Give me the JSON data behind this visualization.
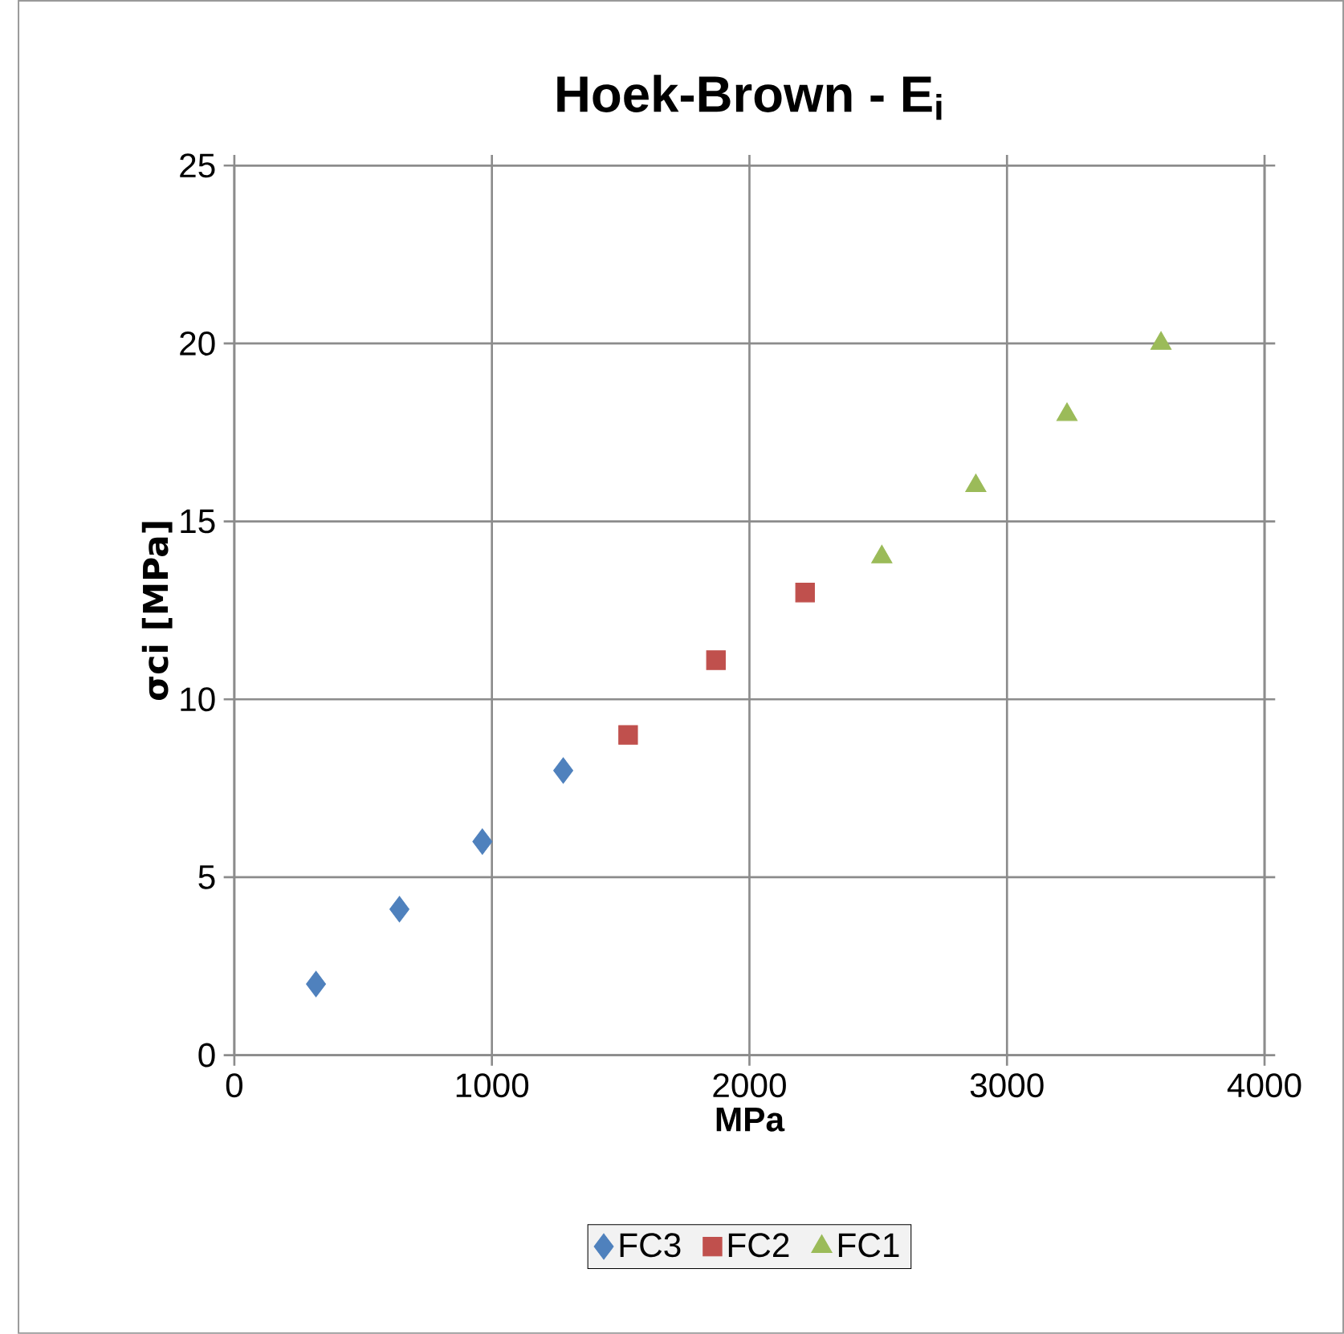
{
  "chart_data": {
    "type": "scatter",
    "title": "Hoek-Brown - E$_{i}$",
    "xlabel": "MPa",
    "ylabel": "σci [MPa]",
    "xlim": [
      0,
      4000
    ],
    "xticks": [
      0,
      1000,
      2000,
      3000,
      4000
    ],
    "ylim": [
      0,
      25
    ],
    "yticks": [
      0,
      5,
      10,
      15,
      20,
      25
    ],
    "grid": true,
    "legend": "bottom",
    "series": [
      {
        "name": "FC3",
        "color": "#4f81bd",
        "marker": "diamond",
        "x": [
          317,
          641,
          963,
          1277
        ],
        "values": [
          2.0,
          4.1,
          6.0,
          8.0
        ]
      },
      {
        "name": "FC2",
        "color": "#c0504d",
        "marker": "square",
        "x": [
          1529,
          1870,
          2216
        ],
        "values": [
          9.0,
          11.1,
          13.0
        ]
      },
      {
        "name": "FC1",
        "color": "#9bbb59",
        "marker": "triangle",
        "x": [
          2514,
          2879,
          3233,
          3598
        ],
        "values": [
          14.0,
          16.0,
          18.0,
          20.0
        ]
      }
    ]
  }
}
